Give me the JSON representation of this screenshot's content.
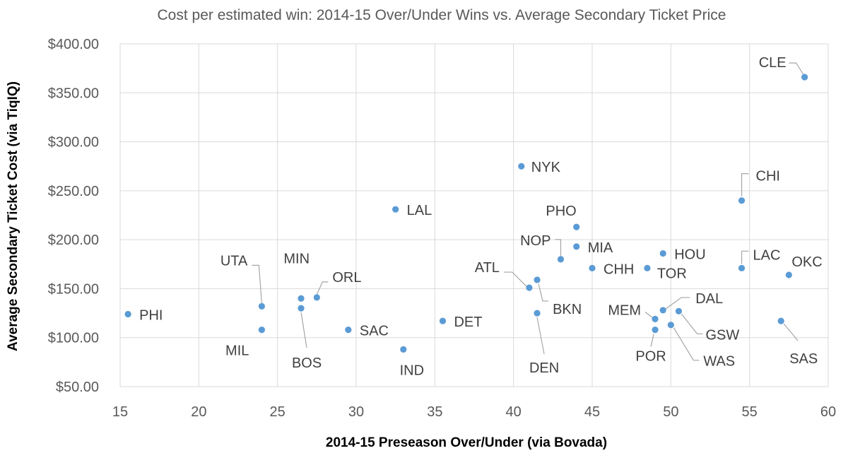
{
  "chart_data": {
    "type": "scatter",
    "title": "Cost per estimated win: 2014-15 Over/Under Wins vs. Average Secondary Ticket Price",
    "xlabel": "2014-15 Preseason Over/Under (via Bovada)",
    "ylabel": "Average Secondary Ticket Cost (via TiqIQ)",
    "xlim": [
      15,
      60
    ],
    "ylim": [
      50,
      400
    ],
    "xticks": [
      "15",
      "20",
      "25",
      "30",
      "35",
      "40",
      "45",
      "50",
      "55",
      "60"
    ],
    "yticks": [
      "$50.00",
      "$100.00",
      "$150.00",
      "$200.00",
      "$250.00",
      "$300.00",
      "$350.00",
      "$400.00"
    ],
    "grid": true,
    "marker_color": "#5b9bd5",
    "points": [
      {
        "team": "PHI",
        "x": 15.5,
        "y": 124
      },
      {
        "team": "UTA",
        "x": 24,
        "y": 132
      },
      {
        "team": "MIL",
        "x": 24,
        "y": 108
      },
      {
        "team": "MIN",
        "x": 26.5,
        "y": 140
      },
      {
        "team": "BOS",
        "x": 26.5,
        "y": 130
      },
      {
        "team": "ORL",
        "x": 27.5,
        "y": 141
      },
      {
        "team": "SAC",
        "x": 29.5,
        "y": 108
      },
      {
        "team": "LAL",
        "x": 32.5,
        "y": 231
      },
      {
        "team": "IND",
        "x": 33,
        "y": 88
      },
      {
        "team": "DET",
        "x": 35.5,
        "y": 117
      },
      {
        "team": "NYK",
        "x": 40.5,
        "y": 275
      },
      {
        "team": "ATL",
        "x": 41,
        "y": 151
      },
      {
        "team": "BKN",
        "x": 41.5,
        "y": 159
      },
      {
        "team": "DEN",
        "x": 41.5,
        "y": 125
      },
      {
        "team": "NOP",
        "x": 43,
        "y": 180
      },
      {
        "team": "PHO",
        "x": 44,
        "y": 213
      },
      {
        "team": "MIA",
        "x": 44,
        "y": 193
      },
      {
        "team": "CHH",
        "x": 45,
        "y": 171
      },
      {
        "team": "TOR",
        "x": 48.5,
        "y": 171
      },
      {
        "team": "MEM",
        "x": 49,
        "y": 119
      },
      {
        "team": "POR",
        "x": 49,
        "y": 108
      },
      {
        "team": "HOU",
        "x": 49.5,
        "y": 186
      },
      {
        "team": "DAL",
        "x": 49.5,
        "y": 128
      },
      {
        "team": "WAS",
        "x": 50,
        "y": 113
      },
      {
        "team": "GSW",
        "x": 50.5,
        "y": 127
      },
      {
        "team": "CHI",
        "x": 54.5,
        "y": 240
      },
      {
        "team": "LAC",
        "x": 54.5,
        "y": 171
      },
      {
        "team": "SAS",
        "x": 57,
        "y": 117
      },
      {
        "team": "OKC",
        "x": 57.5,
        "y": 164
      },
      {
        "team": "CLE",
        "x": 58.5,
        "y": 366
      }
    ]
  }
}
